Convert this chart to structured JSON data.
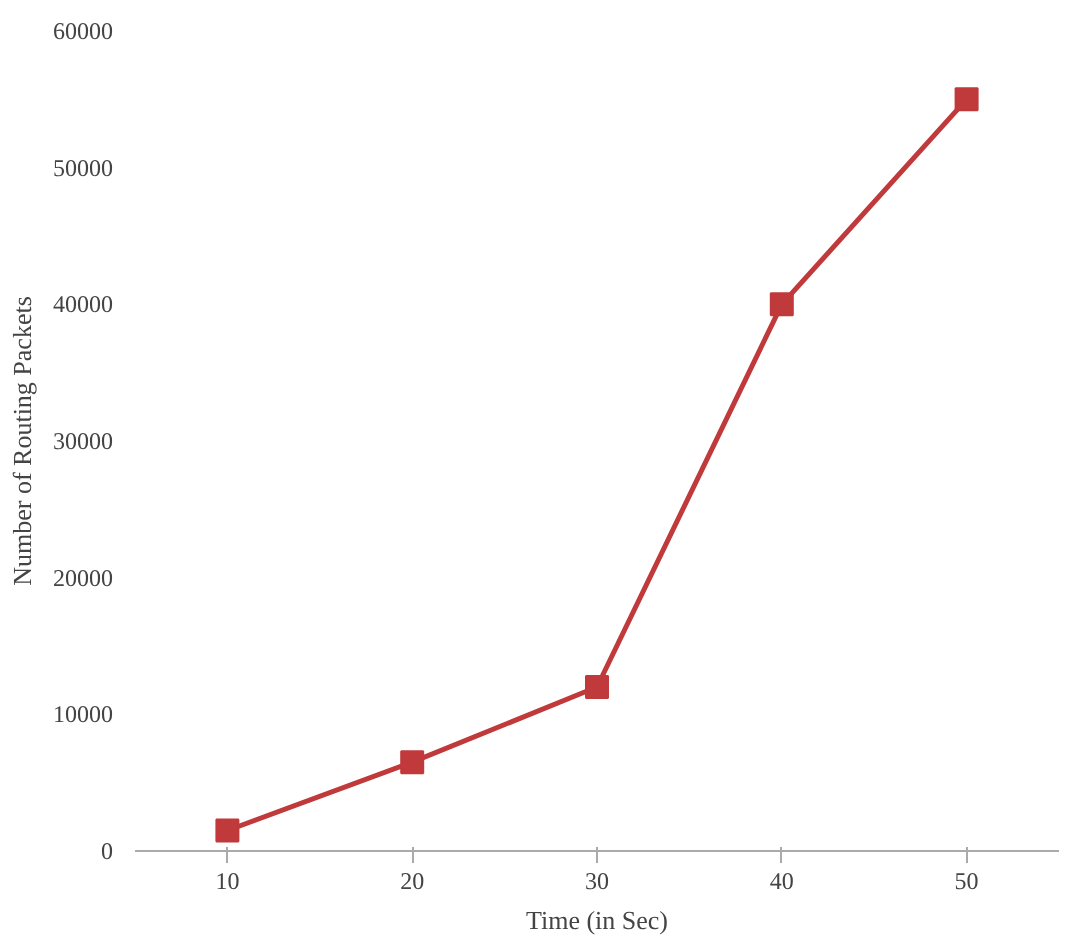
{
  "chart_data": {
    "type": "line",
    "xlabel": "Time (in Sec)",
    "ylabel": "Number of Routing Packets",
    "categories": [
      "10",
      "20",
      "30",
      "40",
      "50"
    ],
    "series": [
      {
        "color": "#c0393b",
        "values": [
          1500,
          6500,
          12000,
          40000,
          55000
        ]
      }
    ],
    "ylim": [
      0,
      60000
    ],
    "yticks": [
      0,
      10000,
      20000,
      30000,
      40000,
      50000,
      60000
    ],
    "grid": false,
    "marker": "square",
    "line_style": "solid"
  }
}
